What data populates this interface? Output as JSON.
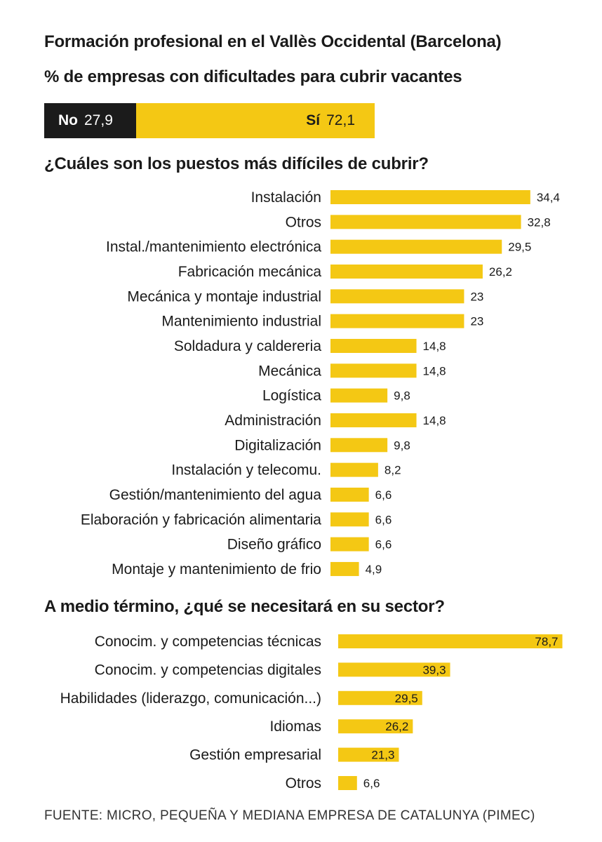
{
  "title": "Formación profesional en el Vallès Occidental (Barcelona)",
  "subtitle": "% de empresas con dificultades para cubrir vacantes",
  "split": {
    "no_label": "No",
    "no_value": "27,9",
    "no_fraction": 27.9,
    "si_label": "Sí",
    "si_value": "72,1",
    "si_fraction": 72.1
  },
  "colors": {
    "bar": "#f4c814",
    "dark": "#1b1b1b",
    "text": "#1a1a1a"
  },
  "chart_data": [
    {
      "type": "bar",
      "orientation": "horizontal",
      "title": "¿Cuáles son los puestos más difíciles de cubrir?",
      "categories": [
        "Instalación",
        "Otros",
        "Instal./mantenimiento electrónica",
        "Fabricación mecánica",
        "Mecánica y montaje industrial",
        "Mantenimiento industrial",
        "Soldadura y caldereria",
        "Mecánica",
        "Logística",
        "Administración",
        "Digitalización",
        "Instalación y telecomu.",
        "Gestión/mantenimiento del agua",
        "Elaboración y fabricación alimentaria",
        "Diseño gráfico",
        "Montaje y mantenimiento de frio"
      ],
      "values": [
        34.4,
        32.8,
        29.5,
        26.2,
        23,
        23,
        14.8,
        14.8,
        9.8,
        14.8,
        9.8,
        8.2,
        6.6,
        6.6,
        6.6,
        4.9
      ],
      "value_labels": [
        "34,4",
        "32,8",
        "29,5",
        "26,2",
        "23",
        "23",
        "14,8",
        "14,8",
        "9,8",
        "14,8",
        "9,8",
        "8,2",
        "6,6",
        "6,6",
        "6,6",
        "4,9"
      ],
      "label_position": "outside",
      "grid": false,
      "legend": "none"
    },
    {
      "type": "bar",
      "orientation": "horizontal",
      "title": "A medio término, ¿qué se necesitará en su sector?",
      "categories": [
        "Conocim. y competencias técnicas",
        "Conocim. y competencias digitales",
        "Habilidades (liderazgo, comunicación...)",
        "Idiomas",
        "Gestión empresarial",
        "Otros"
      ],
      "values": [
        78.7,
        39.3,
        29.5,
        26.2,
        21.3,
        6.6
      ],
      "value_labels": [
        "78,7",
        "39,3",
        "29,5",
        "26,2",
        "21,3",
        "6,6"
      ],
      "label_position": "inside-end",
      "grid": false,
      "legend": "none"
    }
  ],
  "source": "FUENTE: MICRO, PEQUEÑA Y MEDIANA EMPRESA DE CATALUNYA (PIMEC)"
}
